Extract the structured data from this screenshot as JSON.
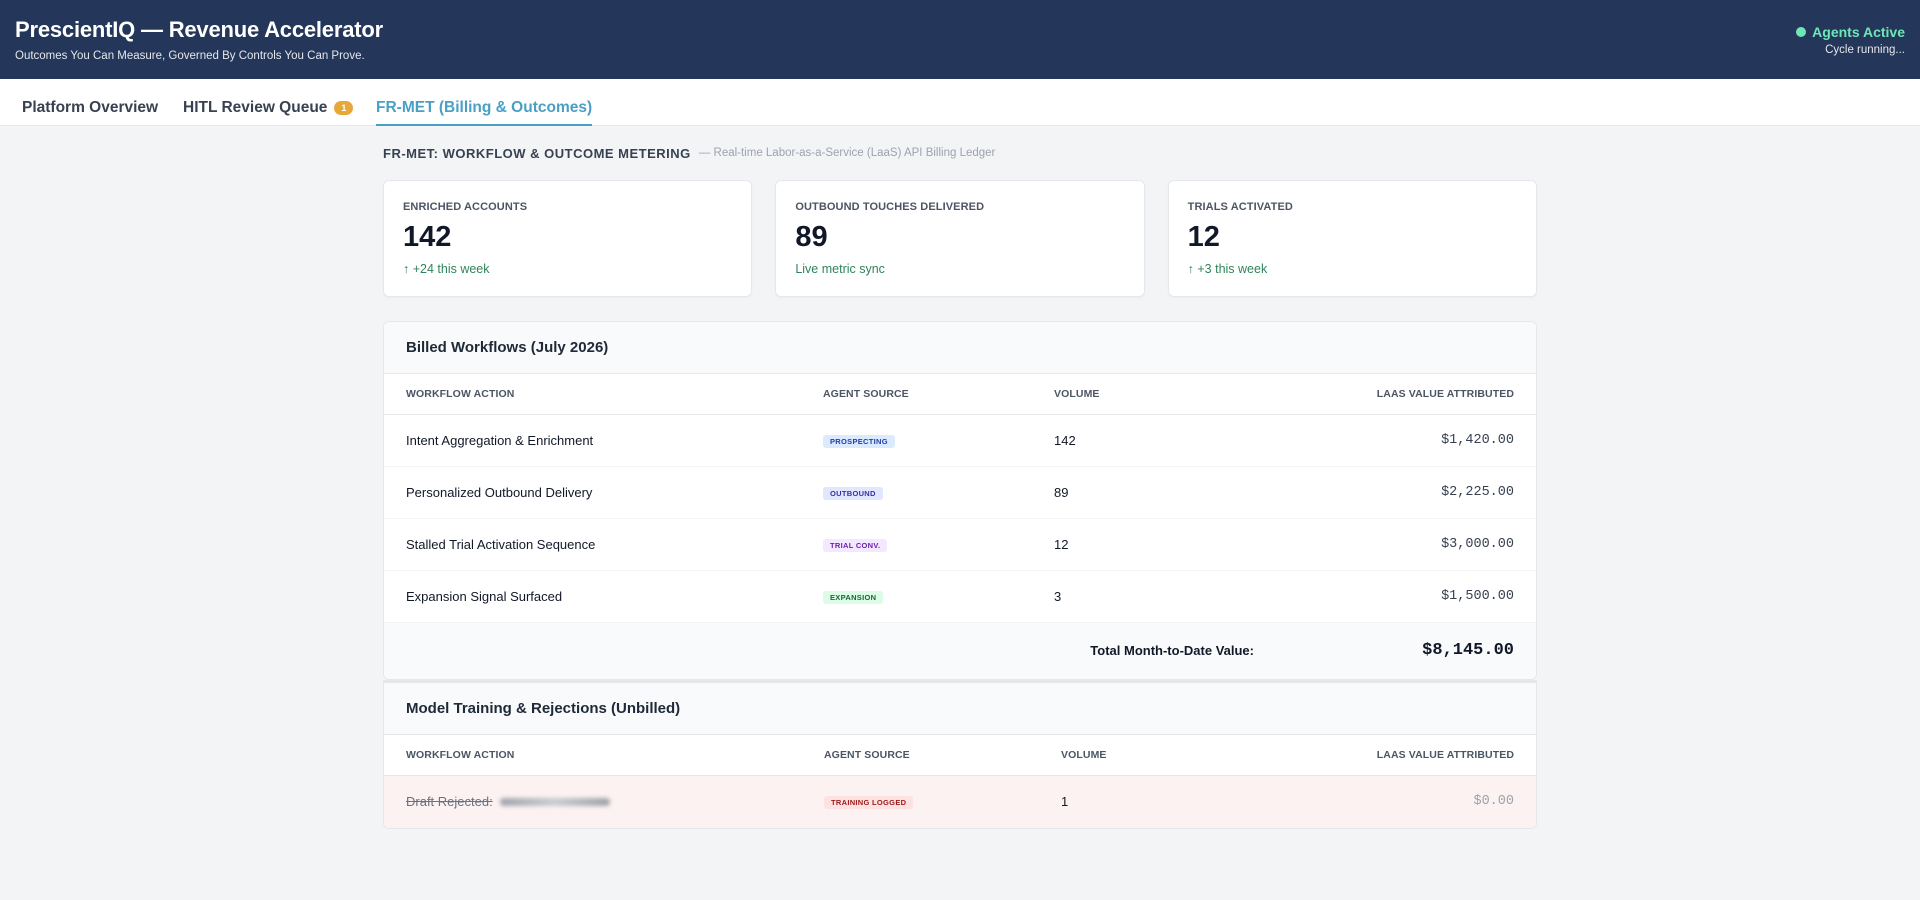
{
  "header": {
    "title": "PrescientIQ — Revenue Accelerator",
    "subtitle": "Outcomes You Can Measure, Governed By Controls You Can Prove.",
    "status_label": "Agents Active",
    "status_sub": "Cycle running..."
  },
  "tabs": [
    {
      "label": "Platform Overview"
    },
    {
      "label": "HITL Review Queue",
      "badge": "1"
    },
    {
      "label": "FR-MET (Billing & Outcomes)",
      "active": true
    }
  ],
  "section": {
    "title": "FR-MET: WORKFLOW & OUTCOME METERING",
    "description": "— Real-time Labor-as-a-Service (LaaS) API Billing Ledger"
  },
  "cards": [
    {
      "label": "Enriched Accounts",
      "value": "142",
      "trend": "↑ +24 this week"
    },
    {
      "label": "Outbound Touches Delivered",
      "value": "89",
      "trend": "Live metric sync"
    },
    {
      "label": "Trials Activated",
      "value": "12",
      "trend": "↑ +3 this week"
    }
  ],
  "billed": {
    "title": "Billed Workflows (July 2026)",
    "columns": [
      "Workflow Action",
      "Agent Source",
      "Volume",
      "LaaS Value Attributed"
    ],
    "rows": [
      {
        "action": "Intent Aggregation & Enrichment",
        "source": "PROSPECTING",
        "volume": "142",
        "value": "$1,420.00"
      },
      {
        "action": "Personalized Outbound Delivery",
        "source": "OUTBOUND",
        "volume": "89",
        "value": "$2,225.00"
      },
      {
        "action": "Stalled Trial Activation Sequence",
        "source": "TRIAL CONV.",
        "volume": "12",
        "value": "$3,000.00"
      },
      {
        "action": "Expansion Signal Surfaced",
        "source": "EXPANSION",
        "volume": "3",
        "value": "$1,500.00"
      }
    ],
    "total_label": "Total Month-to-Date Value:",
    "total_value": "$8,145.00"
  },
  "unbilled": {
    "title": "Model Training & Rejections (Unbilled)",
    "columns": [
      "Workflow Action",
      "Agent Source",
      "Volume",
      "LaaS Value Attributed"
    ],
    "rows": [
      {
        "action": "Draft Rejected:",
        "source": "TRAINING LOGGED",
        "volume": "1",
        "value": "$0.00"
      }
    ]
  },
  "colors": {
    "header_bg": "#243659",
    "accent": "#4a9fc4",
    "status_green": "#6ee7b7",
    "trend_green": "#2f855a",
    "badge_orange": "#e8a838"
  }
}
